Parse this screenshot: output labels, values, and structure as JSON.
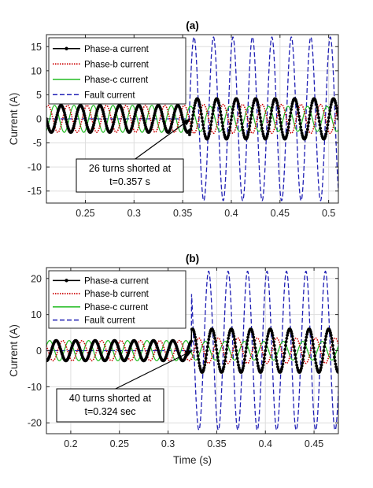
{
  "chart_data": [
    {
      "type": "line",
      "title": "(a)",
      "xlabel": "",
      "ylabel": "Current (A)",
      "xlim": [
        0.21,
        0.51
      ],
      "ylim": [
        -17.5,
        17.5
      ],
      "xticks": [
        0.25,
        0.3,
        0.35,
        0.4,
        0.45,
        0.5
      ],
      "xtick_labels": [
        "0.25",
        "0.3",
        "0.35",
        "0.4",
        "0.45",
        "0.5"
      ],
      "yticks": [
        -15,
        -10,
        -5,
        0,
        5,
        10,
        15
      ],
      "ytick_labels": [
        "-15",
        "-10",
        "-5",
        "0",
        "5",
        "10",
        "15"
      ],
      "grid": true,
      "legend_position": "top-left",
      "fault_time": 0.357,
      "frequency_hz": 50,
      "series": [
        {
          "name": "Phase-a current",
          "style": "solid-with-markers",
          "color": "#000000",
          "amp_before": 2.8,
          "amp_after": 4.2,
          "phase_deg": 0
        },
        {
          "name": "Phase-b current",
          "style": "dotted",
          "color": "#cc0000",
          "amp_before": 2.8,
          "amp_after": 3.0,
          "phase_deg": -120
        },
        {
          "name": "Phase-c current",
          "style": "solid",
          "color": "#22bb22",
          "amp_before": 2.8,
          "amp_after": 2.6,
          "phase_deg": 120
        },
        {
          "name": "Fault current",
          "style": "dashed",
          "color": "#1f1fb4",
          "amp_before": 0,
          "amp_after": 17,
          "phase_deg": 60
        }
      ],
      "annotation": {
        "lines": [
          "26 turns shorted at",
          "t=0.357 s"
        ],
        "arrow_to": [
          0.358,
          0
        ]
      }
    },
    {
      "type": "line",
      "title": "(b)",
      "xlabel": "Time (s)",
      "ylabel": "Current (A)",
      "xlim": [
        0.175,
        0.475
      ],
      "ylim": [
        -23,
        23
      ],
      "xticks": [
        0.2,
        0.25,
        0.3,
        0.35,
        0.4,
        0.45
      ],
      "xtick_labels": [
        "0.2",
        "0.25",
        "0.3",
        "0.35",
        "0.4",
        "0.45"
      ],
      "yticks": [
        -20,
        -10,
        0,
        10,
        20
      ],
      "ytick_labels": [
        "-20",
        "-10",
        "0",
        "10",
        "20"
      ],
      "grid": true,
      "legend_position": "top-left",
      "fault_time": 0.324,
      "frequency_hz": 50,
      "series": [
        {
          "name": "Phase-a current",
          "style": "solid-with-markers",
          "color": "#000000",
          "amp_before": 2.8,
          "amp_after": 6.0,
          "phase_deg": 0
        },
        {
          "name": "Phase-b current",
          "style": "dotted",
          "color": "#cc0000",
          "amp_before": 2.8,
          "amp_after": 3.5,
          "phase_deg": -120
        },
        {
          "name": "Phase-c current",
          "style": "solid",
          "color": "#22bb22",
          "amp_before": 2.8,
          "amp_after": 2.6,
          "phase_deg": 120
        },
        {
          "name": "Fault current",
          "style": "dashed",
          "color": "#1f1fb4",
          "amp_before": 0,
          "amp_after": 22,
          "phase_deg": 60
        }
      ],
      "annotation": {
        "lines": [
          "40 turns shorted at",
          "t=0.324 sec"
        ],
        "arrow_to": [
          0.325,
          0
        ]
      }
    }
  ]
}
